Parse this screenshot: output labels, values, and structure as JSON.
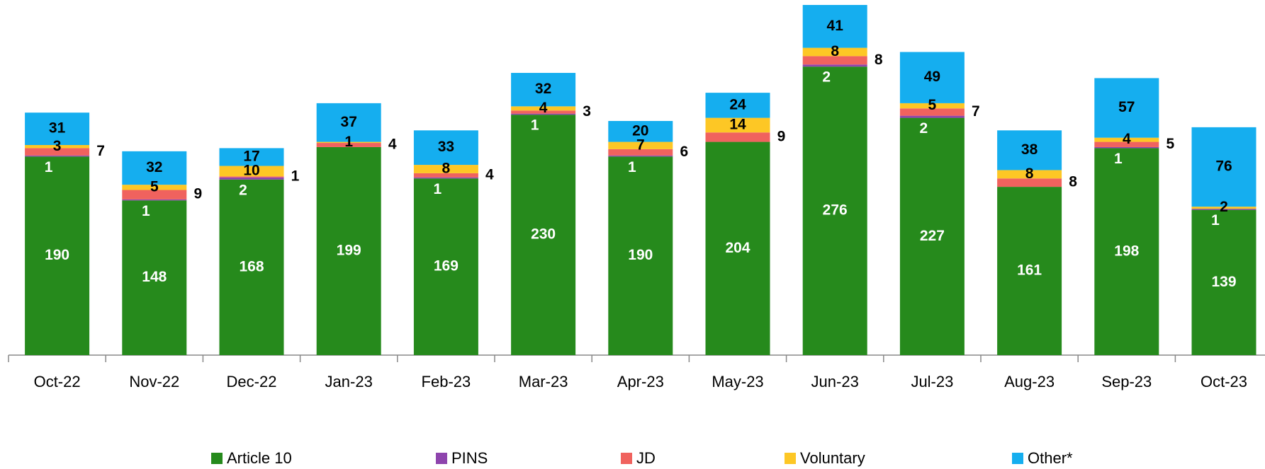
{
  "chart_data": {
    "type": "stacked-bar",
    "categories": [
      "Oct-22",
      "Nov-22",
      "Dec-22",
      "Jan-23",
      "Feb-23",
      "Mar-23",
      "Apr-23",
      "May-23",
      "Jun-23",
      "Jul-23",
      "Aug-23",
      "Sep-23",
      "Oct-23"
    ],
    "series": [
      {
        "name": "Article 10",
        "color": "#268a1c",
        "values": [
          190,
          148,
          168,
          199,
          169,
          230,
          190,
          204,
          276,
          227,
          161,
          198,
          139
        ]
      },
      {
        "name": "PINS",
        "color": "#8e44ad",
        "values": [
          1,
          1,
          2,
          null,
          1,
          1,
          1,
          null,
          2,
          2,
          null,
          1,
          1
        ]
      },
      {
        "name": "JD",
        "color": "#f0625e",
        "values": [
          7,
          9,
          1,
          4,
          4,
          3,
          6,
          9,
          8,
          7,
          8,
          5,
          null
        ]
      },
      {
        "name": "Voluntary",
        "color": "#fdc725",
        "values": [
          3,
          5,
          10,
          1,
          8,
          4,
          7,
          14,
          8,
          5,
          8,
          4,
          2
        ]
      },
      {
        "name": "Other*",
        "color": "#15aeef",
        "values": [
          31,
          32,
          17,
          37,
          33,
          32,
          20,
          24,
          41,
          49,
          38,
          57,
          76
        ]
      }
    ],
    "legend": "bottom"
  }
}
